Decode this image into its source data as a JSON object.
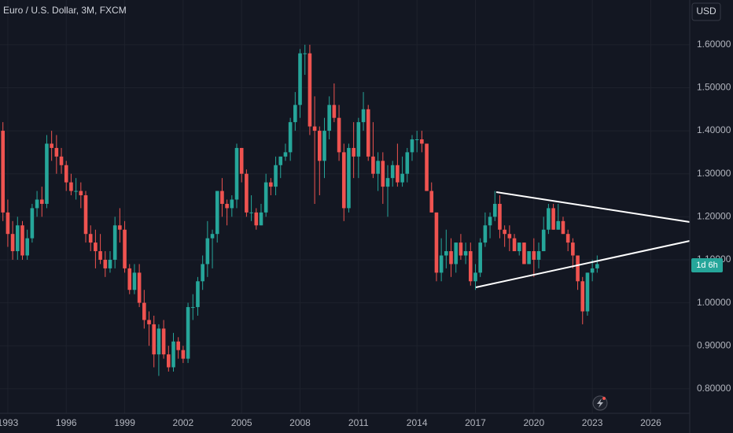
{
  "chart_data": {
    "type": "candlestick",
    "title": "Euro / U.S. Dollar, 3M, FXCM",
    "currency": "USD",
    "countdown": "1d 6h",
    "up_color": "#26a69a",
    "down_color": "#ef5350",
    "xlim": [
      1992.6,
      2028
    ],
    "xticks": [
      1993,
      1996,
      1999,
      2002,
      2005,
      2008,
      2011,
      2014,
      2017,
      2020,
      2023,
      2026
    ],
    "ylim": [
      0.743,
      1.704
    ],
    "yticks": [
      {
        "value": 0.8,
        "label": "0.80000"
      },
      {
        "value": 0.9,
        "label": "0.90000"
      },
      {
        "value": 1.0,
        "label": "1.00000"
      },
      {
        "value": 1.1,
        "label": "1.10000"
      },
      {
        "value": 1.2,
        "label": "1.20000"
      },
      {
        "value": 1.3,
        "label": "1.30000"
      },
      {
        "value": 1.4,
        "label": "1.40000"
      },
      {
        "value": 1.5,
        "label": "1.50000"
      },
      {
        "value": 1.6,
        "label": "1.60000"
      }
    ],
    "grid": true,
    "x": [
      1992.75,
      1993,
      1993.25,
      1993.5,
      1993.75,
      1994,
      1994.25,
      1994.5,
      1994.75,
      1995,
      1995.25,
      1995.5,
      1995.75,
      1996,
      1996.25,
      1996.5,
      1996.75,
      1997,
      1997.25,
      1997.5,
      1997.75,
      1998,
      1998.25,
      1998.5,
      1998.75,
      1999,
      1999.25,
      1999.5,
      1999.75,
      2000,
      2000.25,
      2000.5,
      2000.75,
      2001,
      2001.25,
      2001.5,
      2001.75,
      2002,
      2002.25,
      2002.5,
      2002.75,
      2003,
      2003.25,
      2003.5,
      2003.75,
      2004,
      2004.25,
      2004.5,
      2004.75,
      2005,
      2005.25,
      2005.5,
      2005.75,
      2006,
      2006.25,
      2006.5,
      2006.75,
      2007,
      2007.25,
      2007.5,
      2007.75,
      2008,
      2008.25,
      2008.5,
      2008.75,
      2009,
      2009.25,
      2009.5,
      2009.75,
      2010,
      2010.25,
      2010.5,
      2010.75,
      2011,
      2011.25,
      2011.5,
      2011.75,
      2012,
      2012.25,
      2012.5,
      2012.75,
      2013,
      2013.25,
      2013.5,
      2013.75,
      2014,
      2014.25,
      2014.5,
      2014.75,
      2015,
      2015.25,
      2015.5,
      2015.75,
      2016,
      2016.25,
      2016.5,
      2016.75,
      2017,
      2017.25,
      2017.5,
      2017.75,
      2018,
      2018.25,
      2018.5,
      2018.75,
      2019,
      2019.25,
      2019.5,
      2019.75,
      2020,
      2020.25,
      2020.5,
      2020.75,
      2021,
      2021.25,
      2021.5,
      2021.75,
      2022,
      2022.25,
      2022.5,
      2022.75,
      2023,
      2023.25
    ],
    "open": [
      1.4,
      1.21,
      1.16,
      1.12,
      1.18,
      1.11,
      1.15,
      1.22,
      1.24,
      1.23,
      1.37,
      1.36,
      1.34,
      1.32,
      1.28,
      1.26,
      1.26,
      1.25,
      1.16,
      1.14,
      1.12,
      1.1,
      1.08,
      1.1,
      1.18,
      1.17,
      1.08,
      1.03,
      1.07,
      1.0,
      0.96,
      0.95,
      0.88,
      0.94,
      0.88,
      0.85,
      0.91,
      0.89,
      0.87,
      0.99,
      0.99,
      1.05,
      1.09,
      1.15,
      1.16,
      1.26,
      1.23,
      1.22,
      1.24,
      1.36,
      1.3,
      1.21,
      1.21,
      1.18,
      1.21,
      1.28,
      1.27,
      1.32,
      1.34,
      1.35,
      1.42,
      1.46,
      1.58,
      1.58,
      1.41,
      1.4,
      1.33,
      1.4,
      1.46,
      1.43,
      1.35,
      1.22,
      1.36,
      1.34,
      1.42,
      1.45,
      1.34,
      1.3,
      1.33,
      1.27,
      1.29,
      1.32,
      1.28,
      1.3,
      1.35,
      1.38,
      1.38,
      1.37,
      1.26,
      1.21,
      1.07,
      1.11,
      1.12,
      1.09,
      1.14,
      1.11,
      1.12,
      1.05,
      1.07,
      1.14,
      1.18,
      1.2,
      1.23,
      1.17,
      1.16,
      1.15,
      1.12,
      1.14,
      1.09,
      1.12,
      1.1,
      1.12,
      1.17,
      1.22,
      1.17,
      1.19,
      1.16,
      1.14,
      1.11,
      1.05,
      0.98,
      1.07,
      1.08
    ],
    "high": [
      1.42,
      1.24,
      1.19,
      1.2,
      1.19,
      1.17,
      1.23,
      1.26,
      1.27,
      1.39,
      1.4,
      1.39,
      1.36,
      1.33,
      1.3,
      1.29,
      1.28,
      1.26,
      1.18,
      1.17,
      1.16,
      1.12,
      1.12,
      1.2,
      1.22,
      1.19,
      1.09,
      1.09,
      1.09,
      1.03,
      0.98,
      0.97,
      0.95,
      0.96,
      0.9,
      0.93,
      0.92,
      0.9,
      1.0,
      1.02,
      1.06,
      1.11,
      1.19,
      1.17,
      1.26,
      1.29,
      1.24,
      1.25,
      1.37,
      1.36,
      1.31,
      1.25,
      1.22,
      1.23,
      1.3,
      1.29,
      1.34,
      1.34,
      1.37,
      1.43,
      1.49,
      1.59,
      1.6,
      1.6,
      1.48,
      1.41,
      1.43,
      1.48,
      1.51,
      1.46,
      1.37,
      1.37,
      1.42,
      1.43,
      1.49,
      1.46,
      1.42,
      1.35,
      1.35,
      1.32,
      1.33,
      1.37,
      1.34,
      1.36,
      1.39,
      1.4,
      1.4,
      1.37,
      1.28,
      1.21,
      1.15,
      1.17,
      1.15,
      1.14,
      1.16,
      1.14,
      1.14,
      1.09,
      1.15,
      1.21,
      1.21,
      1.26,
      1.25,
      1.18,
      1.18,
      1.16,
      1.14,
      1.14,
      1.12,
      1.15,
      1.14,
      1.2,
      1.23,
      1.23,
      1.23,
      1.2,
      1.17,
      1.15,
      1.11,
      1.06,
      1.07,
      1.1,
      1.11
    ],
    "low": [
      1.19,
      1.13,
      1.1,
      1.1,
      1.1,
      1.1,
      1.14,
      1.2,
      1.2,
      1.22,
      1.33,
      1.3,
      1.3,
      1.26,
      1.25,
      1.24,
      1.22,
      1.14,
      1.12,
      1.08,
      1.09,
      1.06,
      1.07,
      1.08,
      1.14,
      1.07,
      1.02,
      1.02,
      0.99,
      0.94,
      0.9,
      0.85,
      0.83,
      0.87,
      0.84,
      0.84,
      0.87,
      0.86,
      0.86,
      0.96,
      0.97,
      1.03,
      1.06,
      1.08,
      1.14,
      1.2,
      1.18,
      1.2,
      1.22,
      1.28,
      1.2,
      1.19,
      1.17,
      1.18,
      1.2,
      1.25,
      1.25,
      1.29,
      1.33,
      1.33,
      1.4,
      1.43,
      1.53,
      1.39,
      1.23,
      1.25,
      1.29,
      1.38,
      1.42,
      1.33,
      1.19,
      1.21,
      1.29,
      1.29,
      1.4,
      1.33,
      1.29,
      1.26,
      1.23,
      1.2,
      1.27,
      1.27,
      1.27,
      1.28,
      1.33,
      1.35,
      1.35,
      1.26,
      1.21,
      1.05,
      1.05,
      1.08,
      1.06,
      1.07,
      1.1,
      1.09,
      1.04,
      1.03,
      1.06,
      1.13,
      1.15,
      1.19,
      1.15,
      1.13,
      1.12,
      1.12,
      1.11,
      1.09,
      1.09,
      1.06,
      1.08,
      1.12,
      1.16,
      1.17,
      1.17,
      1.16,
      1.12,
      1.08,
      1.03,
      0.95,
      0.97,
      1.05,
      1.07
    ],
    "close": [
      1.21,
      1.16,
      1.12,
      1.18,
      1.11,
      1.15,
      1.22,
      1.24,
      1.23,
      1.37,
      1.36,
      1.34,
      1.32,
      1.28,
      1.26,
      1.26,
      1.25,
      1.16,
      1.14,
      1.12,
      1.1,
      1.08,
      1.1,
      1.18,
      1.17,
      1.08,
      1.03,
      1.07,
      1.0,
      0.96,
      0.95,
      0.88,
      0.94,
      0.88,
      0.85,
      0.91,
      0.89,
      0.87,
      0.99,
      0.99,
      1.05,
      1.09,
      1.15,
      1.16,
      1.26,
      1.23,
      1.22,
      1.24,
      1.36,
      1.3,
      1.21,
      1.21,
      1.18,
      1.21,
      1.28,
      1.27,
      1.32,
      1.34,
      1.35,
      1.42,
      1.46,
      1.58,
      1.58,
      1.41,
      1.4,
      1.33,
      1.4,
      1.46,
      1.43,
      1.35,
      1.22,
      1.36,
      1.34,
      1.42,
      1.45,
      1.34,
      1.3,
      1.33,
      1.27,
      1.29,
      1.32,
      1.28,
      1.3,
      1.35,
      1.38,
      1.38,
      1.37,
      1.26,
      1.21,
      1.07,
      1.11,
      1.12,
      1.09,
      1.14,
      1.11,
      1.12,
      1.05,
      1.07,
      1.14,
      1.18,
      1.2,
      1.23,
      1.17,
      1.16,
      1.15,
      1.12,
      1.14,
      1.09,
      1.12,
      1.1,
      1.12,
      1.17,
      1.22,
      1.17,
      1.19,
      1.16,
      1.14,
      1.11,
      1.05,
      0.98,
      1.07,
      1.08,
      1.09
    ]
  }
}
